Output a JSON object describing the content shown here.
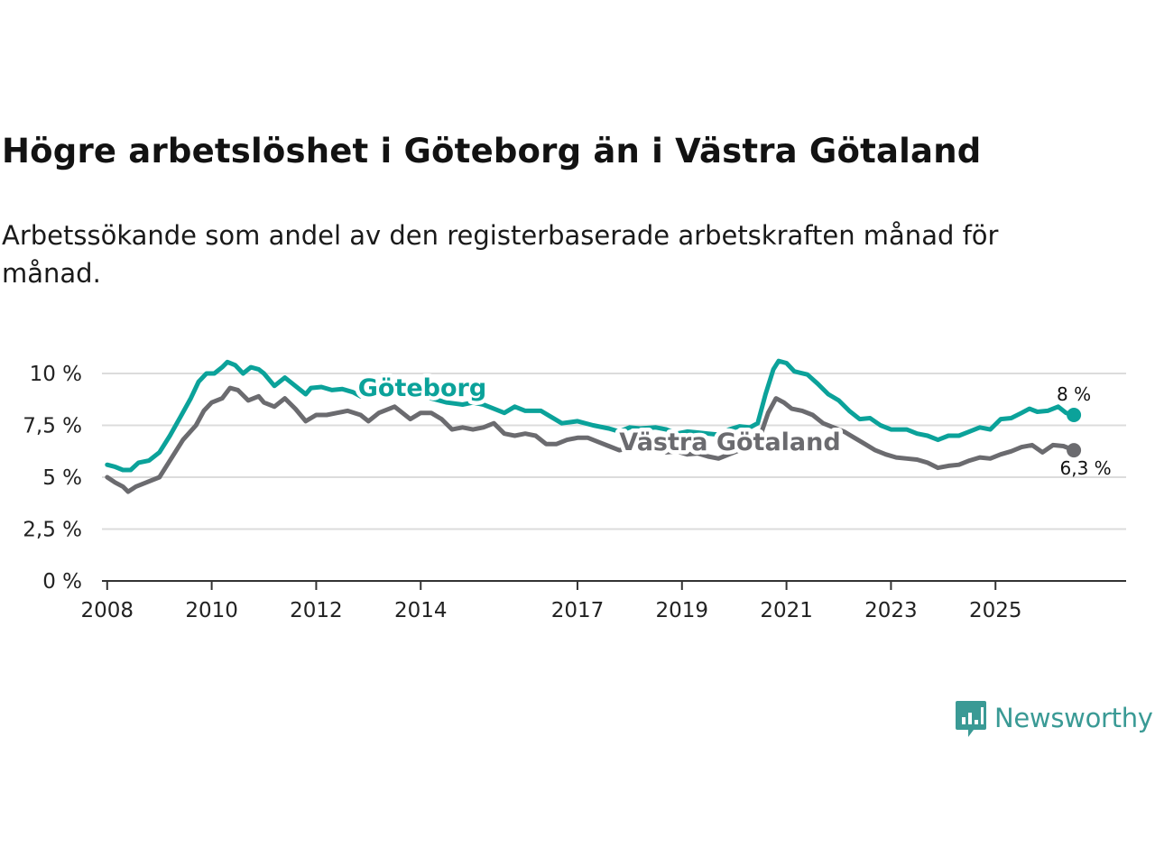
{
  "title": "Högre arbetslöshet i Göteborg än i Västra Götaland",
  "subtitle": "Arbetssökande som andel av den registerbaserade arbetskraften månad för månad.",
  "brand": {
    "name": "Newsworthy",
    "color": "#3a9a95",
    "icon": "newsworthy-logo-icon"
  },
  "chart_data": {
    "type": "line",
    "title": "Högre arbetslöshet i Göteborg än i Västra Götaland",
    "subtitle": "Arbetssökande som andel av den registerbaserade arbetskraften månad för månad.",
    "xlabel": "",
    "ylabel": "",
    "ylim": [
      0,
      10
    ],
    "y_ticks": [
      0,
      2.5,
      5,
      7.5,
      10
    ],
    "y_tick_labels": [
      "0 %",
      "2,5 %",
      "5 %",
      "7,5 %",
      "10 %"
    ],
    "x_ticks": [
      2008,
      2010,
      2012,
      2014,
      2017,
      2019,
      2021,
      2023,
      2025
    ],
    "x_tick_labels": [
      "2008",
      "2010",
      "2012",
      "2014",
      "2017",
      "2019",
      "2021",
      "2023",
      "2025"
    ],
    "xlim": [
      2007.9,
      2027.5
    ],
    "grid": true,
    "series": [
      {
        "name": "Göteborg",
        "color": "#0ba29a",
        "end_label": "8 %",
        "points": [
          [
            2008.0,
            5.6
          ],
          [
            2008.15,
            5.5
          ],
          [
            2008.3,
            5.35
          ],
          [
            2008.45,
            5.35
          ],
          [
            2008.6,
            5.7
          ],
          [
            2008.8,
            5.8
          ],
          [
            2009.0,
            6.2
          ],
          [
            2009.2,
            7.0
          ],
          [
            2009.4,
            7.9
          ],
          [
            2009.6,
            8.8
          ],
          [
            2009.75,
            9.6
          ],
          [
            2009.9,
            10.0
          ],
          [
            2010.05,
            10.0
          ],
          [
            2010.2,
            10.3
          ],
          [
            2010.3,
            10.55
          ],
          [
            2010.45,
            10.4
          ],
          [
            2010.6,
            10.0
          ],
          [
            2010.75,
            10.3
          ],
          [
            2010.9,
            10.2
          ],
          [
            2011.0,
            10.0
          ],
          [
            2011.2,
            9.4
          ],
          [
            2011.4,
            9.8
          ],
          [
            2011.6,
            9.4
          ],
          [
            2011.8,
            9.0
          ],
          [
            2011.9,
            9.3
          ],
          [
            2012.1,
            9.35
          ],
          [
            2012.3,
            9.2
          ],
          [
            2012.5,
            9.25
          ],
          [
            2012.7,
            9.1
          ],
          [
            2012.85,
            8.9
          ],
          [
            2013.0,
            9.2
          ],
          [
            2013.2,
            9.5
          ],
          [
            2013.5,
            9.55
          ],
          [
            2013.8,
            9.25
          ],
          [
            2014.0,
            9.0
          ],
          [
            2014.2,
            8.8
          ],
          [
            2014.5,
            8.6
          ],
          [
            2014.8,
            8.5
          ],
          [
            2015.0,
            8.6
          ],
          [
            2015.2,
            8.5
          ],
          [
            2015.4,
            8.3
          ],
          [
            2015.6,
            8.1
          ],
          [
            2015.8,
            8.4
          ],
          [
            2016.0,
            8.2
          ],
          [
            2016.3,
            8.2
          ],
          [
            2016.5,
            7.9
          ],
          [
            2016.7,
            7.6
          ],
          [
            2017.0,
            7.7
          ],
          [
            2017.3,
            7.5
          ],
          [
            2017.6,
            7.35
          ],
          [
            2017.8,
            7.2
          ],
          [
            2018.0,
            7.4
          ],
          [
            2018.2,
            7.35
          ],
          [
            2018.5,
            7.4
          ],
          [
            2018.7,
            7.3
          ],
          [
            2018.9,
            7.1
          ],
          [
            2019.1,
            7.2
          ],
          [
            2019.3,
            7.15
          ],
          [
            2019.5,
            7.1
          ],
          [
            2019.7,
            7.05
          ],
          [
            2019.9,
            7.3
          ],
          [
            2020.1,
            7.45
          ],
          [
            2020.3,
            7.4
          ],
          [
            2020.45,
            7.6
          ],
          [
            2020.6,
            9.0
          ],
          [
            2020.75,
            10.2
          ],
          [
            2020.85,
            10.6
          ],
          [
            2021.0,
            10.5
          ],
          [
            2021.15,
            10.1
          ],
          [
            2021.4,
            9.95
          ],
          [
            2021.6,
            9.5
          ],
          [
            2021.8,
            9.0
          ],
          [
            2022.0,
            8.7
          ],
          [
            2022.2,
            8.2
          ],
          [
            2022.4,
            7.8
          ],
          [
            2022.6,
            7.85
          ],
          [
            2022.8,
            7.5
          ],
          [
            2023.0,
            7.3
          ],
          [
            2023.3,
            7.3
          ],
          [
            2023.5,
            7.1
          ],
          [
            2023.7,
            7.0
          ],
          [
            2023.9,
            6.8
          ],
          [
            2024.1,
            7.0
          ],
          [
            2024.3,
            7.0
          ],
          [
            2024.5,
            7.2
          ],
          [
            2024.7,
            7.4
          ],
          [
            2024.9,
            7.3
          ],
          [
            2025.1,
            7.8
          ],
          [
            2025.3,
            7.85
          ],
          [
            2025.5,
            8.1
          ],
          [
            2025.65,
            8.3
          ],
          [
            2025.8,
            8.15
          ],
          [
            2026.0,
            8.2
          ],
          [
            2026.2,
            8.4
          ],
          [
            2026.35,
            8.1
          ],
          [
            2026.5,
            8.0
          ]
        ]
      },
      {
        "name": "Västra Götaland",
        "color": "#6b6b6f",
        "end_label": "6,3 %",
        "points": [
          [
            2008.0,
            5.0
          ],
          [
            2008.15,
            4.75
          ],
          [
            2008.3,
            4.55
          ],
          [
            2008.4,
            4.3
          ],
          [
            2008.55,
            4.55
          ],
          [
            2008.75,
            4.75
          ],
          [
            2009.0,
            5.0
          ],
          [
            2009.2,
            5.8
          ],
          [
            2009.45,
            6.8
          ],
          [
            2009.7,
            7.5
          ],
          [
            2009.85,
            8.2
          ],
          [
            2010.0,
            8.6
          ],
          [
            2010.2,
            8.8
          ],
          [
            2010.35,
            9.3
          ],
          [
            2010.5,
            9.2
          ],
          [
            2010.7,
            8.7
          ],
          [
            2010.9,
            8.9
          ],
          [
            2011.0,
            8.6
          ],
          [
            2011.2,
            8.4
          ],
          [
            2011.4,
            8.8
          ],
          [
            2011.6,
            8.3
          ],
          [
            2011.8,
            7.7
          ],
          [
            2012.0,
            8.0
          ],
          [
            2012.2,
            8.0
          ],
          [
            2012.4,
            8.1
          ],
          [
            2012.6,
            8.2
          ],
          [
            2012.85,
            8.0
          ],
          [
            2013.0,
            7.7
          ],
          [
            2013.2,
            8.1
          ],
          [
            2013.5,
            8.4
          ],
          [
            2013.8,
            7.8
          ],
          [
            2014.0,
            8.1
          ],
          [
            2014.2,
            8.1
          ],
          [
            2014.4,
            7.8
          ],
          [
            2014.6,
            7.3
          ],
          [
            2014.8,
            7.4
          ],
          [
            2015.0,
            7.3
          ],
          [
            2015.2,
            7.4
          ],
          [
            2015.4,
            7.6
          ],
          [
            2015.6,
            7.1
          ],
          [
            2015.8,
            7.0
          ],
          [
            2016.0,
            7.1
          ],
          [
            2016.2,
            7.0
          ],
          [
            2016.4,
            6.6
          ],
          [
            2016.6,
            6.6
          ],
          [
            2016.8,
            6.8
          ],
          [
            2017.0,
            6.9
          ],
          [
            2017.2,
            6.9
          ],
          [
            2017.4,
            6.7
          ],
          [
            2017.6,
            6.5
          ],
          [
            2017.8,
            6.3
          ],
          [
            2018.0,
            6.4
          ],
          [
            2018.3,
            6.5
          ],
          [
            2018.5,
            6.4
          ],
          [
            2018.7,
            6.2
          ],
          [
            2018.9,
            6.25
          ],
          [
            2019.1,
            6.1
          ],
          [
            2019.3,
            6.15
          ],
          [
            2019.5,
            6.0
          ],
          [
            2019.7,
            5.9
          ],
          [
            2019.9,
            6.1
          ],
          [
            2020.1,
            6.3
          ],
          [
            2020.3,
            6.45
          ],
          [
            2020.5,
            7.0
          ],
          [
            2020.65,
            8.1
          ],
          [
            2020.8,
            8.8
          ],
          [
            2020.95,
            8.6
          ],
          [
            2021.1,
            8.3
          ],
          [
            2021.3,
            8.2
          ],
          [
            2021.5,
            8.0
          ],
          [
            2021.7,
            7.6
          ],
          [
            2021.9,
            7.4
          ],
          [
            2022.1,
            7.2
          ],
          [
            2022.3,
            6.9
          ],
          [
            2022.5,
            6.6
          ],
          [
            2022.7,
            6.3
          ],
          [
            2022.9,
            6.1
          ],
          [
            2023.1,
            5.95
          ],
          [
            2023.3,
            5.9
          ],
          [
            2023.5,
            5.85
          ],
          [
            2023.7,
            5.7
          ],
          [
            2023.9,
            5.45
          ],
          [
            2024.1,
            5.55
          ],
          [
            2024.3,
            5.6
          ],
          [
            2024.5,
            5.8
          ],
          [
            2024.7,
            5.95
          ],
          [
            2024.9,
            5.9
          ],
          [
            2025.1,
            6.1
          ],
          [
            2025.3,
            6.25
          ],
          [
            2025.5,
            6.45
          ],
          [
            2025.7,
            6.55
          ],
          [
            2025.9,
            6.2
          ],
          [
            2026.1,
            6.55
          ],
          [
            2026.3,
            6.5
          ],
          [
            2026.5,
            6.3
          ]
        ]
      }
    ],
    "annotations": [
      {
        "series": "Göteborg",
        "text": "Göteborg",
        "x": 2012.8
      },
      {
        "series": "Västra Götaland",
        "text": "Västra Götaland",
        "x": 2017.8
      }
    ]
  }
}
